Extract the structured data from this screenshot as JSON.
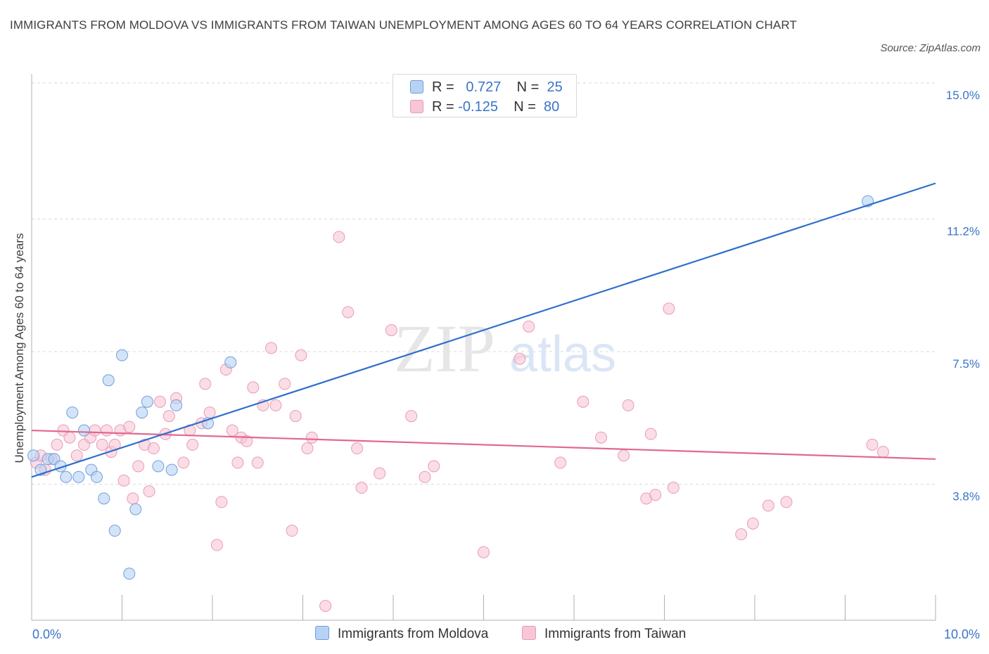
{
  "title": "IMMIGRANTS FROM MOLDOVA VS IMMIGRANTS FROM TAIWAN UNEMPLOYMENT AMONG AGES 60 TO 64 YEARS CORRELATION CHART",
  "source": "Source: ZipAtlas.com",
  "watermark": {
    "zip": "ZIP",
    "atlas": "atlas"
  },
  "legend": {
    "r_label": "R =",
    "n_label": "N =",
    "moldova": {
      "r": "0.727",
      "n": "25"
    },
    "taiwan": {
      "r": "-0.125",
      "n": "80"
    }
  },
  "colors": {
    "moldova_fill": "#b8d2f4",
    "moldova_stroke": "#6f9fdc",
    "moldova_line": "#2f6fcc",
    "taiwan_fill": "#f8c6d6",
    "taiwan_stroke": "#ea9ab6",
    "taiwan_line": "#e06890",
    "axis_label": "#3a74c8",
    "grid": "#d9d9d9"
  },
  "chart_data": {
    "type": "scatter",
    "title": "IMMIGRANTS FROM MOLDOVA VS IMMIGRANTS FROM TAIWAN UNEMPLOYMENT AMONG AGES 60 TO 64 YEARS CORRELATION CHART",
    "xlabel": "",
    "ylabel": "Unemployment Among Ages 60 to 64 years",
    "xlim": [
      0,
      10
    ],
    "ylim": [
      0,
      15
    ],
    "x_tick_labels": [
      {
        "value": 0,
        "label": "0.0%"
      },
      {
        "value": 10,
        "label": "10.0%"
      }
    ],
    "y_tick_labels": [
      {
        "value": 3.8,
        "label": "3.8%"
      },
      {
        "value": 7.5,
        "label": "7.5%"
      },
      {
        "value": 11.2,
        "label": "11.2%"
      },
      {
        "value": 15.0,
        "label": "15.0%"
      }
    ],
    "series": [
      {
        "name": "Immigrants from Moldova",
        "r": 0.727,
        "n": 25,
        "trend": {
          "x0": 0.0,
          "y0": 4.0,
          "x1": 10.0,
          "y1": 12.2
        },
        "points": [
          [
            0.02,
            4.6
          ],
          [
            0.1,
            4.2
          ],
          [
            0.18,
            4.5
          ],
          [
            0.25,
            4.5
          ],
          [
            0.32,
            4.3
          ],
          [
            0.38,
            4.0
          ],
          [
            0.45,
            5.8
          ],
          [
            0.52,
            4.0
          ],
          [
            0.58,
            5.3
          ],
          [
            0.66,
            4.2
          ],
          [
            0.72,
            4.0
          ],
          [
            0.8,
            3.4
          ],
          [
            0.85,
            6.7
          ],
          [
            0.92,
            2.5
          ],
          [
            1.0,
            7.4
          ],
          [
            1.08,
            1.3
          ],
          [
            1.15,
            3.1
          ],
          [
            1.22,
            5.8
          ],
          [
            1.28,
            6.1
          ],
          [
            1.4,
            4.3
          ],
          [
            1.55,
            4.2
          ],
          [
            1.6,
            6.0
          ],
          [
            1.95,
            5.5
          ],
          [
            2.2,
            7.2
          ],
          [
            9.25,
            11.7
          ]
        ]
      },
      {
        "name": "Immigrants from Taiwan",
        "r": -0.125,
        "n": 80,
        "trend": {
          "x0": 0.0,
          "y0": 5.3,
          "x1": 10.0,
          "y1": 4.5
        },
        "points": [
          [
            0.05,
            4.4
          ],
          [
            0.1,
            4.6
          ],
          [
            0.15,
            4.2
          ],
          [
            0.22,
            4.5
          ],
          [
            0.28,
            4.9
          ],
          [
            0.35,
            5.3
          ],
          [
            0.42,
            5.1
          ],
          [
            0.5,
            4.6
          ],
          [
            0.58,
            4.9
          ],
          [
            0.65,
            5.1
          ],
          [
            0.7,
            5.3
          ],
          [
            0.78,
            4.9
          ],
          [
            0.83,
            5.3
          ],
          [
            0.88,
            4.7
          ],
          [
            0.92,
            4.9
          ],
          [
            0.98,
            5.3
          ],
          [
            1.02,
            3.9
          ],
          [
            1.08,
            5.4
          ],
          [
            1.12,
            3.4
          ],
          [
            1.18,
            4.3
          ],
          [
            1.25,
            4.9
          ],
          [
            1.3,
            3.6
          ],
          [
            1.35,
            4.8
          ],
          [
            1.42,
            6.1
          ],
          [
            1.48,
            5.2
          ],
          [
            1.52,
            5.7
          ],
          [
            1.6,
            6.2
          ],
          [
            1.68,
            4.4
          ],
          [
            1.75,
            5.3
          ],
          [
            1.78,
            4.9
          ],
          [
            1.88,
            5.5
          ],
          [
            1.92,
            6.6
          ],
          [
            1.97,
            5.8
          ],
          [
            2.05,
            2.1
          ],
          [
            2.1,
            3.3
          ],
          [
            2.15,
            7.0
          ],
          [
            2.22,
            5.3
          ],
          [
            2.28,
            4.4
          ],
          [
            2.32,
            5.1
          ],
          [
            2.38,
            5.0
          ],
          [
            2.45,
            6.5
          ],
          [
            2.5,
            4.4
          ],
          [
            2.56,
            6.0
          ],
          [
            2.65,
            7.6
          ],
          [
            2.7,
            6.0
          ],
          [
            2.8,
            6.6
          ],
          [
            2.88,
            2.5
          ],
          [
            2.92,
            5.7
          ],
          [
            2.98,
            7.4
          ],
          [
            3.05,
            4.8
          ],
          [
            3.1,
            5.1
          ],
          [
            3.4,
            10.7
          ],
          [
            3.5,
            8.6
          ],
          [
            3.6,
            4.8
          ],
          [
            3.65,
            3.7
          ],
          [
            3.85,
            4.1
          ],
          [
            3.98,
            8.1
          ],
          [
            4.2,
            5.7
          ],
          [
            4.35,
            4.0
          ],
          [
            4.45,
            4.3
          ],
          [
            5.0,
            1.9
          ],
          [
            5.4,
            7.3
          ],
          [
            5.5,
            8.2
          ],
          [
            5.85,
            4.4
          ],
          [
            6.1,
            6.1
          ],
          [
            6.3,
            5.1
          ],
          [
            6.55,
            4.6
          ],
          [
            6.6,
            6.0
          ],
          [
            6.8,
            3.4
          ],
          [
            6.85,
            5.2
          ],
          [
            6.9,
            3.5
          ],
          [
            7.1,
            3.7
          ],
          [
            7.05,
            8.7
          ],
          [
            7.85,
            2.4
          ],
          [
            7.98,
            2.7
          ],
          [
            8.15,
            3.2
          ],
          [
            8.35,
            3.3
          ],
          [
            9.3,
            4.9
          ],
          [
            9.42,
            4.7
          ],
          [
            3.25,
            0.4
          ]
        ]
      }
    ]
  },
  "bottom_legend": {
    "moldova": "Immigrants from Moldova",
    "taiwan": "Immigrants from Taiwan"
  }
}
